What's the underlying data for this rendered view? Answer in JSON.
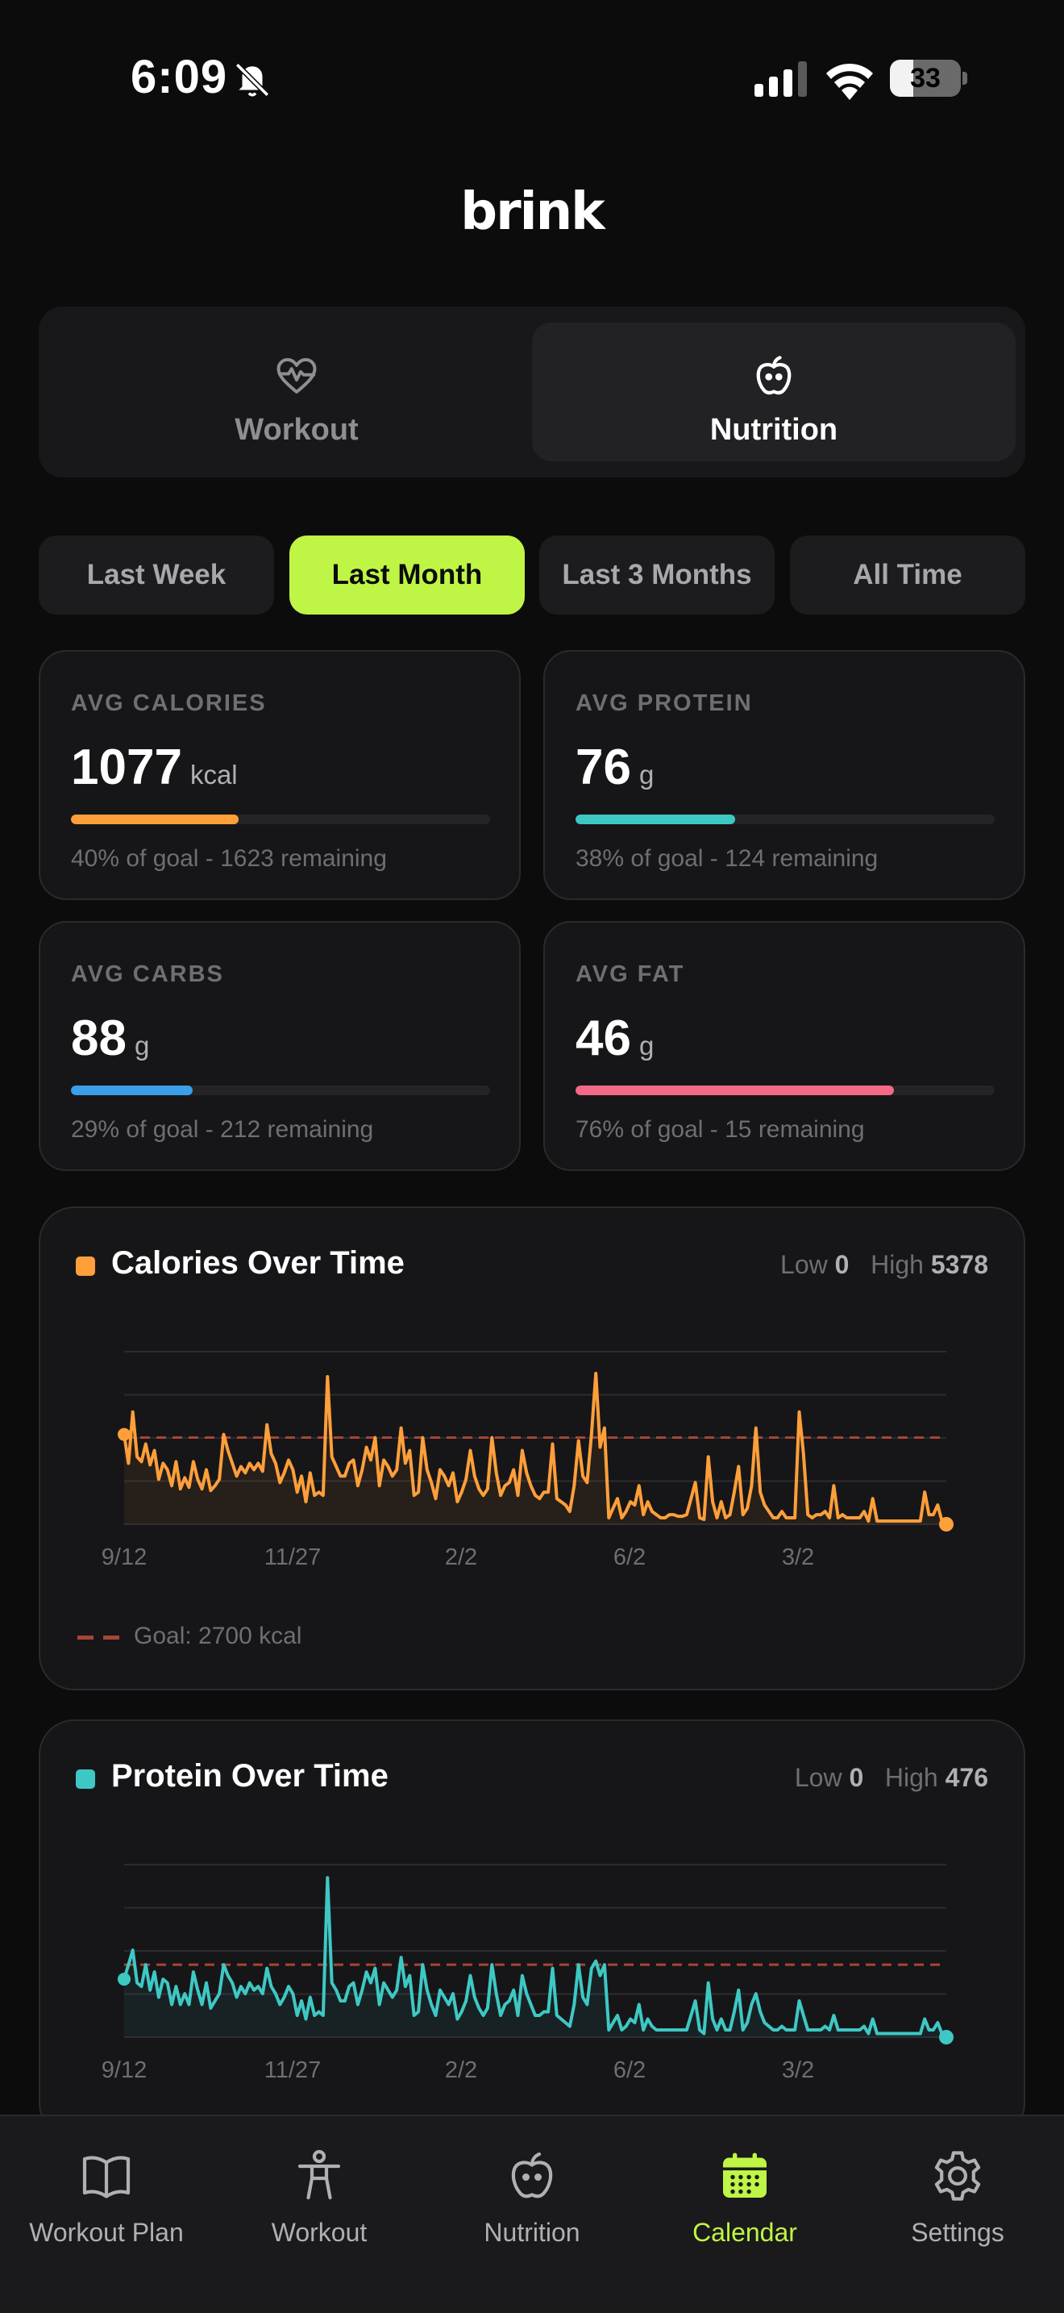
{
  "status_bar": {
    "time": "6:09",
    "battery": "33",
    "battery_level": 0.33
  },
  "brand": {
    "name": "brink"
  },
  "segment": {
    "workout_label": "Workout",
    "nutrition_label": "Nutrition",
    "selected": "nutrition"
  },
  "range_tabs": [
    {
      "label": "Last Week",
      "active": false
    },
    {
      "label": "Last Month",
      "active": true
    },
    {
      "label": "Last 3 Months",
      "active": false
    },
    {
      "label": "All Time",
      "active": false
    }
  ],
  "stats": [
    {
      "label": "AVG CALORIES",
      "value": "1077",
      "unit": "kcal",
      "note": "40% of goal - 1623 remaining",
      "progress": 0.4,
      "color": "#ff9f3a"
    },
    {
      "label": "AVG PROTEIN",
      "value": "76",
      "unit": "g",
      "note": "38% of goal - 124 remaining",
      "progress": 0.38,
      "color": "#3ec8c4"
    },
    {
      "label": "AVG CARBS",
      "value": "88",
      "unit": "g",
      "note": "29% of goal - 212 remaining",
      "progress": 0.29,
      "color": "#3a9ee8"
    },
    {
      "label": "AVG FAT",
      "value": "46",
      "unit": "g",
      "note": "76% of goal - 15 remaining",
      "progress": 0.76,
      "color": "#f26a85"
    }
  ],
  "calories_chart": {
    "title": "Calories Over Time",
    "low_label": "Low",
    "low_value": "0",
    "high_label": "High",
    "high_value": "5378",
    "legend": "Goal: 2700 kcal",
    "color": "#ff9f3a",
    "goal_color": "#a84436"
  },
  "protein_chart": {
    "title": "Protein Over Time",
    "low_label": "Low",
    "low_value": "0",
    "high_label": "High",
    "high_value": "476",
    "color": "#3ec8c4",
    "goal_color": "#a84436"
  },
  "chart_data": [
    {
      "type": "line",
      "title": "Calories Over Time",
      "x_tick_labels": [
        "9/12",
        "11/27",
        "2/2",
        "6/2",
        "3/2"
      ],
      "ylim": [
        0,
        5378
      ],
      "goal": 2700,
      "grid": true,
      "series": [
        {
          "values": [
            2800,
            1900,
            3500,
            2100,
            1950,
            2500,
            1850,
            2300,
            1400,
            1900,
            1700,
            1200,
            1950,
            1100,
            1450,
            1150,
            1950,
            1400,
            1100,
            1700,
            1050,
            1200,
            1400,
            2800,
            2300,
            1900,
            1500,
            1800,
            1600,
            1900,
            1700,
            1900,
            1650,
            3100,
            2200,
            1900,
            1300,
            1600,
            2000,
            1700,
            1000,
            1500,
            700,
            1600,
            900,
            1000,
            900,
            4600,
            2100,
            1800,
            1500,
            1500,
            1900,
            2000,
            1200,
            1700,
            2400,
            2000,
            2700,
            1200,
            2000,
            1800,
            1500,
            1700,
            3000,
            1900,
            2300,
            900,
            1000,
            2700,
            1700,
            1300,
            800,
            1700,
            1500,
            1200,
            1600,
            700,
            1000,
            1400,
            2300,
            1500,
            1100,
            900,
            1100,
            2700,
            1600,
            900,
            1200,
            1300,
            1700,
            900,
            2300,
            1600,
            1200,
            900,
            800,
            1000,
            1000,
            2500,
            800,
            700,
            600,
            400,
            1200,
            2600,
            1500,
            1300,
            2800,
            4700,
            2400,
            3000,
            200,
            500,
            800,
            200,
            400,
            700,
            600,
            1200,
            300,
            700,
            400,
            300,
            200,
            200,
            300,
            300,
            250,
            250,
            300,
            800,
            1300,
            200,
            150,
            2100,
            700,
            200,
            700,
            200,
            300,
            1000,
            1800,
            300,
            500,
            1200,
            3000,
            1000,
            600,
            400,
            200,
            200,
            400,
            200,
            200,
            200,
            3500,
            2200,
            300,
            200,
            300,
            300,
            400,
            200,
            1200,
            200,
            300,
            200,
            200,
            200,
            200,
            400,
            100,
            800,
            100,
            100,
            100,
            100,
            100,
            100,
            100,
            100,
            100,
            100,
            100,
            1000,
            300,
            300,
            600,
            100,
            0
          ]
        }
      ]
    },
    {
      "type": "line",
      "title": "Protein Over Time",
      "x_tick_labels": [
        "9/12",
        "11/27",
        "2/2",
        "6/2",
        "3/2"
      ],
      "ylim": [
        0,
        476
      ],
      "goal": 200,
      "grid": true,
      "series": [
        {
          "values": [
            160,
            200,
            240,
            150,
            140,
            200,
            130,
            180,
            110,
            160,
            150,
            90,
            140,
            90,
            120,
            90,
            180,
            130,
            90,
            150,
            80,
            100,
            120,
            200,
            170,
            150,
            110,
            140,
            120,
            150,
            130,
            140,
            120,
            190,
            140,
            120,
            90,
            110,
            140,
            120,
            60,
            100,
            50,
            110,
            60,
            70,
            60,
            440,
            150,
            130,
            100,
            100,
            140,
            150,
            90,
            130,
            180,
            150,
            190,
            90,
            150,
            130,
            110,
            130,
            220,
            140,
            170,
            60,
            70,
            200,
            130,
            90,
            60,
            130,
            110,
            90,
            120,
            50,
            70,
            100,
            170,
            110,
            80,
            60,
            80,
            200,
            120,
            60,
            90,
            100,
            130,
            60,
            170,
            120,
            90,
            60,
            60,
            70,
            70,
            190,
            60,
            50,
            40,
            30,
            90,
            200,
            110,
            90,
            190,
            210,
            170,
            200,
            20,
            40,
            60,
            20,
            30,
            50,
            40,
            90,
            20,
            50,
            30,
            20,
            20,
            20,
            20,
            20,
            20,
            20,
            20,
            60,
            100,
            20,
            10,
            150,
            50,
            20,
            50,
            20,
            20,
            70,
            130,
            20,
            40,
            90,
            120,
            70,
            40,
            30,
            20,
            20,
            30,
            20,
            20,
            20,
            100,
            60,
            20,
            20,
            20,
            20,
            30,
            20,
            60,
            20,
            20,
            20,
            20,
            20,
            20,
            30,
            10,
            50,
            10,
            10,
            10,
            10,
            10,
            10,
            10,
            10,
            10,
            10,
            10,
            50,
            20,
            20,
            40,
            10,
            0
          ]
        }
      ]
    }
  ],
  "tab_bar": [
    {
      "label": "Workout Plan",
      "icon": "book-icon",
      "active": false
    },
    {
      "label": "Workout",
      "icon": "person-icon",
      "active": false
    },
    {
      "label": "Nutrition",
      "icon": "apple-icon",
      "active": false
    },
    {
      "label": "Calendar",
      "icon": "calendar-icon",
      "active": true
    },
    {
      "label": "Settings",
      "icon": "gear-icon",
      "active": false
    }
  ]
}
